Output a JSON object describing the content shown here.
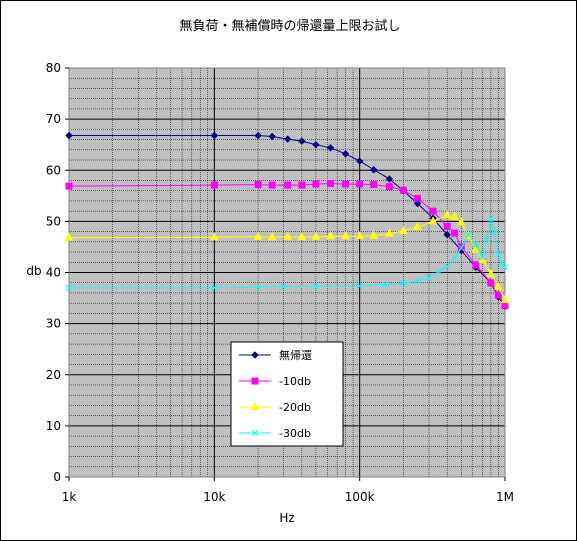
{
  "chart_data": {
    "type": "line",
    "title": "無負荷・無補償時の帰還量上限お試し",
    "xlabel": "Hz",
    "ylabel": "db",
    "x_scale": "log",
    "xlim": [
      1000,
      1000000
    ],
    "ylim": [
      0,
      80
    ],
    "x_tick_labels": [
      "1k",
      "10k",
      "100k",
      "1M"
    ],
    "x_tick_values": [
      1000,
      10000,
      100000,
      1000000
    ],
    "y_ticks": [
      0,
      10,
      20,
      30,
      40,
      50,
      60,
      70,
      80
    ],
    "grid": true,
    "legend_position": "center-left",
    "series": [
      {
        "name": "無帰還",
        "color": "#000080",
        "marker": "diamond",
        "points": [
          [
            1000,
            66.8
          ],
          [
            10000,
            66.8
          ],
          [
            20000,
            66.8
          ],
          [
            25000,
            66.6
          ],
          [
            32000,
            66.1
          ],
          [
            40000,
            65.7
          ],
          [
            50000,
            65.0
          ],
          [
            63000,
            64.4
          ],
          [
            80000,
            63.2
          ],
          [
            100000,
            61.8
          ],
          [
            125000,
            60.1
          ],
          [
            160000,
            58.3
          ],
          [
            200000,
            56.0
          ],
          [
            250000,
            53.5
          ],
          [
            320000,
            50.6
          ],
          [
            400000,
            47.4
          ],
          [
            500000,
            44.3
          ],
          [
            630000,
            41.0
          ],
          [
            800000,
            37.9
          ],
          [
            900000,
            35.2
          ],
          [
            1000000,
            33.4
          ]
        ]
      },
      {
        "name": "-10db",
        "color": "#ff00ff",
        "marker": "square",
        "points": [
          [
            1000,
            56.9
          ],
          [
            10000,
            57.1
          ],
          [
            20000,
            57.2
          ],
          [
            25000,
            57.1
          ],
          [
            32000,
            57.1
          ],
          [
            40000,
            57.1
          ],
          [
            50000,
            57.3
          ],
          [
            63000,
            57.4
          ],
          [
            80000,
            57.3
          ],
          [
            100000,
            57.3
          ],
          [
            125000,
            57.2
          ],
          [
            160000,
            56.8
          ],
          [
            200000,
            56.1
          ],
          [
            250000,
            54.5
          ],
          [
            320000,
            52.0
          ],
          [
            400000,
            49.0
          ],
          [
            450000,
            47.7
          ],
          [
            500000,
            45.0
          ],
          [
            630000,
            41.5
          ],
          [
            800000,
            38.0
          ],
          [
            900000,
            35.6
          ],
          [
            1000000,
            33.5
          ]
        ]
      },
      {
        "name": "-20db",
        "color": "#ffff00",
        "marker": "triangle",
        "points": [
          [
            1000,
            46.8
          ],
          [
            10000,
            46.9
          ],
          [
            20000,
            47.0
          ],
          [
            25000,
            46.9
          ],
          [
            32000,
            47.0
          ],
          [
            40000,
            46.9
          ],
          [
            50000,
            47.0
          ],
          [
            63000,
            47.1
          ],
          [
            80000,
            47.1
          ],
          [
            100000,
            47.1
          ],
          [
            125000,
            47.2
          ],
          [
            160000,
            47.6
          ],
          [
            200000,
            48.1
          ],
          [
            250000,
            48.9
          ],
          [
            320000,
            50.0
          ],
          [
            400000,
            51.2
          ],
          [
            450000,
            50.9
          ],
          [
            500000,
            49.8
          ],
          [
            560000,
            47.2
          ],
          [
            630000,
            44.5
          ],
          [
            700000,
            42.5
          ],
          [
            800000,
            39.7
          ],
          [
            900000,
            37.2
          ],
          [
            1000000,
            34.6
          ]
        ]
      },
      {
        "name": "-30db",
        "color": "#00ffff",
        "marker": "x",
        "points": [
          [
            1000,
            37.0
          ],
          [
            10000,
            37.0
          ],
          [
            20000,
            37.1
          ],
          [
            30000,
            37.2
          ],
          [
            50000,
            37.3
          ],
          [
            100000,
            37.4
          ],
          [
            150000,
            37.6
          ],
          [
            200000,
            37.9
          ],
          [
            250000,
            38.3
          ],
          [
            300000,
            39.0
          ],
          [
            350000,
            40.2
          ],
          [
            400000,
            41.2
          ],
          [
            450000,
            42.8
          ],
          [
            500000,
            44.8
          ],
          [
            560000,
            47.5
          ],
          [
            630000,
            45.5
          ],
          [
            700000,
            43.0
          ],
          [
            750000,
            46.5
          ],
          [
            800000,
            50.6
          ],
          [
            850000,
            48.0
          ],
          [
            900000,
            43.5
          ],
          [
            950000,
            41.8
          ],
          [
            1000000,
            41.0
          ]
        ]
      }
    ]
  }
}
